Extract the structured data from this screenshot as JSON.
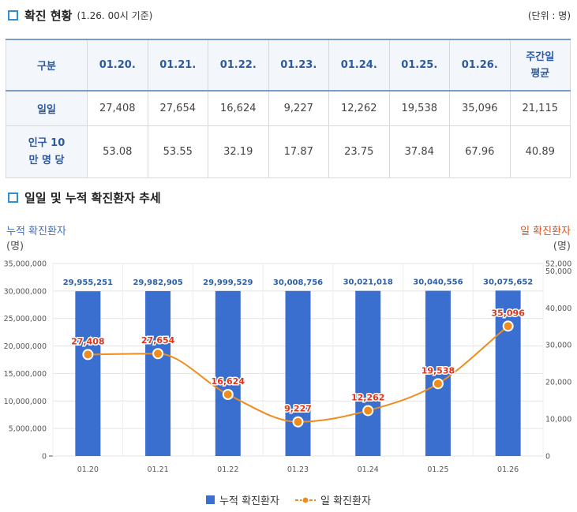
{
  "section1": {
    "title": "확진 현황",
    "subtitle": "(1.26. 00시 기준)",
    "unit": "(단위 : 명)"
  },
  "table": {
    "header_label": "구분",
    "dates": [
      "01.20.",
      "01.21.",
      "01.22.",
      "01.23.",
      "01.24.",
      "01.25.",
      "01.26."
    ],
    "avg_label": "주간일 평균",
    "rows": [
      {
        "label": "일일",
        "values": [
          "27,408",
          "27,654",
          "16,624",
          "9,227",
          "12,262",
          "19,538",
          "35,096"
        ],
        "avg": "21,115"
      },
      {
        "label": "인구 10만 명 당",
        "values": [
          "53.08",
          "53.55",
          "32.19",
          "17.87",
          "23.75",
          "37.84",
          "67.96"
        ],
        "avg": "40.89"
      }
    ]
  },
  "section2": {
    "title": "일일 및 누적 확진환자 추세"
  },
  "chart_data": {
    "type": "bar+line",
    "categories": [
      "01.20",
      "01.21",
      "01.22",
      "01.23",
      "01.24",
      "01.25",
      "01.26"
    ],
    "series": [
      {
        "name": "누적 확진환자",
        "type": "bar",
        "axis": "left",
        "values": [
          29955251,
          29982905,
          29999529,
          30008756,
          30021018,
          30040556,
          30075652
        ],
        "labels": [
          "29,955,251",
          "29,982,905",
          "29,999,529",
          "30,008,756",
          "30,021,018",
          "30,040,556",
          "30,075,652"
        ],
        "color": "#3a6fcf"
      },
      {
        "name": "일 확진환자",
        "type": "line",
        "axis": "right",
        "values": [
          27408,
          27654,
          16624,
          9227,
          12262,
          19538,
          35096
        ],
        "labels": [
          "27,408",
          "27,654",
          "16,624",
          "9,227",
          "12,262",
          "19,538",
          "35,096"
        ],
        "color": "#f08c1e"
      }
    ],
    "left_axis": {
      "title": "누적 확진환자",
      "unit": "(명)",
      "ylim": [
        0,
        35000000
      ],
      "ticks": [
        "0",
        "5,000,000",
        "10,000,000",
        "15,000,000",
        "20,000,000",
        "25,000,000",
        "30,000,000",
        "35,000,000"
      ],
      "color": "#3a6fcf"
    },
    "right_axis": {
      "title": "일 확진환자",
      "unit": "(명)",
      "ylim": [
        0,
        52000
      ],
      "ticks": [
        "0",
        "10,000",
        "20,000",
        "30,000",
        "40,000",
        "50,000",
        "52,000"
      ],
      "tick_values": [
        0,
        10000,
        20000,
        30000,
        40000,
        50000,
        52000
      ],
      "color": "#e0521b"
    },
    "label_colors": {
      "bar": "#2d5fa8",
      "line": "#e0351b"
    },
    "grid": true,
    "legend_position": "bottom"
  }
}
